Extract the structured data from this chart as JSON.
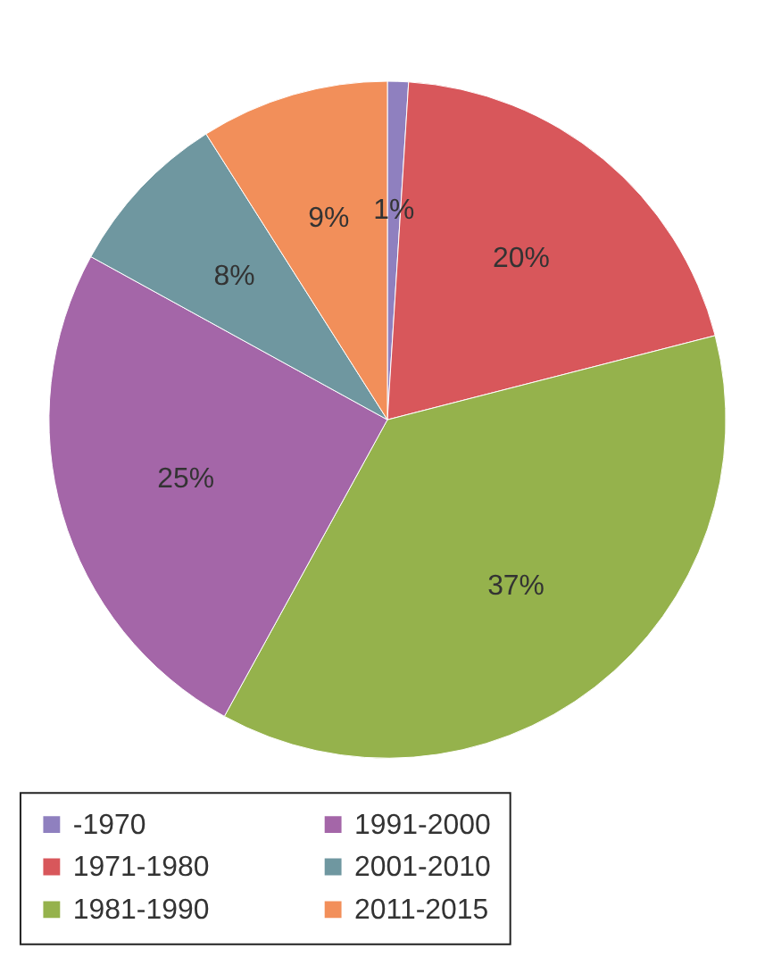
{
  "chart_data": {
    "type": "pie",
    "categories": [
      "-1970",
      "1971-1980",
      "1981-1990",
      "1991-2000",
      "2001-2010",
      "2011-2015"
    ],
    "values": [
      1,
      20,
      37,
      25,
      8,
      9
    ],
    "value_labels": [
      "1%",
      "20%",
      "37%",
      "25%",
      "8%",
      "9%"
    ],
    "colors": [
      "#8f80bf",
      "#d8575b",
      "#95b24c",
      "#a466a8",
      "#6f97a0",
      "#f28f5a"
    ],
    "legend": "bottom"
  }
}
